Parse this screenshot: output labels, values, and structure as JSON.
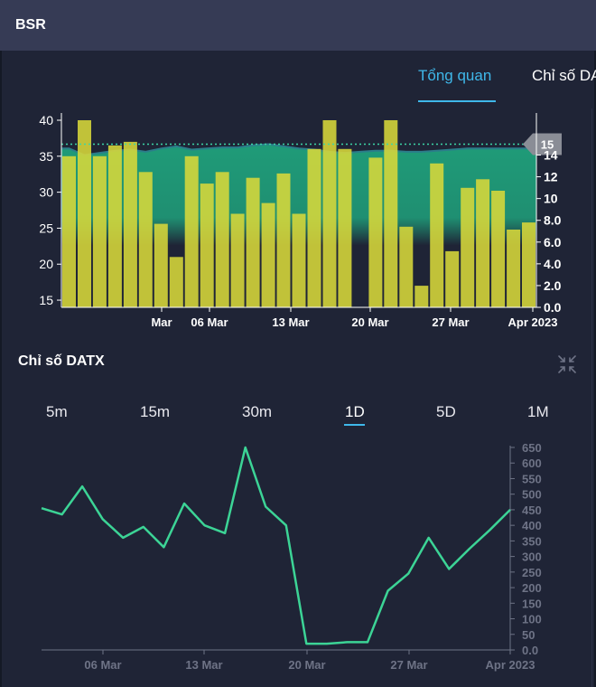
{
  "header": {
    "title": "BSR"
  },
  "tabs": [
    {
      "label": "Tổng quan",
      "active": true
    },
    {
      "label": "Chỉ số DATX",
      "active": false
    }
  ],
  "section": {
    "title": "Chỉ số DATX"
  },
  "periods": [
    {
      "label": "5m",
      "active": false
    },
    {
      "label": "15m",
      "active": false
    },
    {
      "label": "30m",
      "active": false
    },
    {
      "label": "1D",
      "active": true
    },
    {
      "label": "5D",
      "active": false
    },
    {
      "label": "1M",
      "active": false
    }
  ],
  "icons": {
    "collapse": "collapse-arrows-icon"
  },
  "colors": {
    "volume_bar": "#d8d83a",
    "price_area": "#1f9b78",
    "price_line": "#2b7d8a",
    "last_price_line": "#3cd6a6",
    "datx_line": "#3cd496",
    "axis_text": "#ffffff",
    "axis_text_muted": "#6e7386"
  },
  "chart_data": [
    {
      "type": "bar",
      "series": [
        {
          "values": [
            35.0,
            40.0,
            35.0,
            36.5,
            37.0,
            32.8,
            25.6,
            21.0,
            35.0,
            31.2,
            32.8,
            27.0,
            32.0,
            28.5,
            32.6,
            27.0,
            36.0,
            40.0,
            36.0,
            0,
            34.8,
            40.0,
            25.2,
            17.0,
            34.0,
            21.8,
            30.6,
            31.8,
            30.2,
            24.8,
            25.8
          ]
        },
        {
          "values": [
            14.6,
            14.0,
            14.2,
            14.4,
            14.5,
            14.3,
            14.6,
            14.8,
            14.5,
            14.6,
            14.7,
            14.7,
            14.9,
            15.0,
            14.8,
            14.6,
            14.5,
            14.3,
            14.2,
            14.3,
            14.4,
            14.4,
            14.3,
            14.3,
            14.4,
            14.5,
            14.6,
            14.6,
            14.6,
            14.6,
            14.6
          ]
        }
      ],
      "x_labels": [
        "Mar",
        "06 Mar",
        "13 Mar",
        "20 Mar",
        "27 Mar",
        "Apr 2023"
      ],
      "y_left_ticks": [
        15,
        20,
        25,
        30,
        35,
        40
      ],
      "y_left_range": [
        14,
        40
      ],
      "y_right_ticks": [
        "0.0",
        "2.0",
        "4.0",
        "6.0",
        "8.0",
        "10",
        "12",
        "14"
      ],
      "y_right_range": [
        0,
        17.2
      ],
      "last_price": 15
    },
    {
      "type": "line",
      "values": [
        455,
        435,
        525,
        420,
        360,
        395,
        330,
        470,
        400,
        375,
        650,
        460,
        400,
        20,
        20,
        25,
        25,
        190,
        245,
        360,
        260,
        325,
        385,
        450
      ],
      "x_labels": [
        "06 Mar",
        "13 Mar",
        "20 Mar",
        "27 Mar",
        "Apr 2023"
      ],
      "y_ticks": [
        "0.0",
        "50",
        "100",
        "150",
        "200",
        "250",
        "300",
        "350",
        "400",
        "450",
        "500",
        "550",
        "600",
        "650"
      ],
      "y_range": [
        0,
        650
      ]
    }
  ]
}
